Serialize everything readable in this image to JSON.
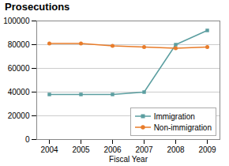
{
  "chart_data": {
    "type": "line",
    "title": "Prosecutions",
    "xlabel": "Fiscal Year",
    "x": [
      2004,
      2005,
      2006,
      2007,
      2008,
      2009
    ],
    "series": [
      {
        "name": "Immigration",
        "color": "#5b9ea0",
        "marker": "square",
        "values": [
          38000,
          38000,
          38000,
          40000,
          80000,
          92000
        ]
      },
      {
        "name": "Non-immigration",
        "color": "#e87c2a",
        "marker": "circle",
        "values": [
          81000,
          81000,
          79000,
          78000,
          77000,
          78000
        ]
      }
    ],
    "xlim": [
      2003.6,
      2009.4
    ],
    "xticks": [
      2004,
      2005,
      2006,
      2007,
      2008,
      2009
    ],
    "ylim": [
      0,
      100000
    ],
    "yticks": [
      0,
      20000,
      40000,
      60000,
      80000,
      100000
    ],
    "grid": true,
    "legend": "lower right"
  }
}
